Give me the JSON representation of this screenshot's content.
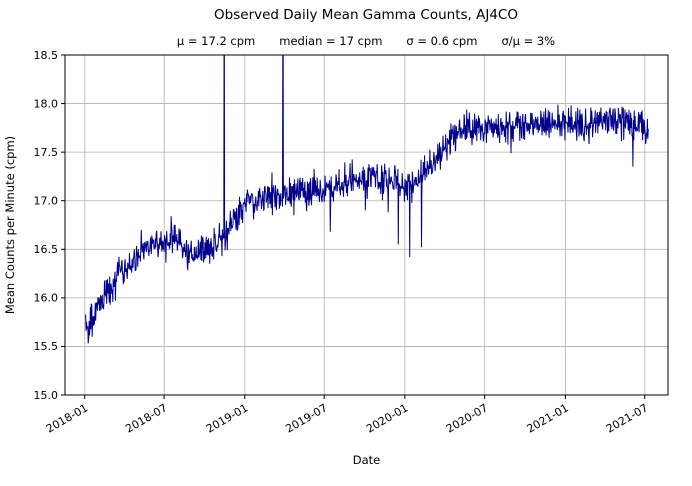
{
  "title": "Observed Daily Mean Gamma Counts, AJ4CO",
  "stats": {
    "mu": "μ = 17.2 cpm",
    "median": "median = 17 cpm",
    "sigma": "σ = 0.6 cpm",
    "ratio": "σ/μ = 3%"
  },
  "chart_data": {
    "type": "line",
    "title": "Observed Daily Mean Gamma Counts, AJ4CO",
    "subtitle": "μ = 17.2 cpm   median = 17 cpm   σ = 0.6 cpm   σ/μ = 3%",
    "xlabel": "Date",
    "ylabel": "Mean Counts per Minute (cpm)",
    "ylim": [
      15.0,
      18.5
    ],
    "yticks": [
      15.0,
      15.5,
      16.0,
      16.5,
      17.0,
      17.5,
      18.0,
      18.5
    ],
    "xticks": [
      "2018-01",
      "2018-07",
      "2019-01",
      "2019-07",
      "2020-01",
      "2020-07",
      "2021-01",
      "2021-07"
    ],
    "xtick_days": [
      0,
      181,
      365,
      546,
      730,
      912,
      1096,
      1277
    ],
    "x_domain_days": [
      -45,
      1330
    ],
    "data_start_day": 2,
    "data_end_day": 1285,
    "grid": true,
    "grid_color": "#b0b0b0",
    "line_color": "#00008b",
    "summary_stats": {
      "mean_cpm": 17.2,
      "median_cpm": 17,
      "sigma_cpm": 0.6,
      "sigma_over_mu_pct": 3
    },
    "series_anchors": [
      [
        0,
        15.78
      ],
      [
        8,
        15.7
      ],
      [
        14,
        15.82
      ],
      [
        20,
        15.72
      ],
      [
        30,
        15.95
      ],
      [
        45,
        16.02
      ],
      [
        60,
        16.1
      ],
      [
        75,
        16.2
      ],
      [
        90,
        16.28
      ],
      [
        105,
        16.35
      ],
      [
        120,
        16.42
      ],
      [
        140,
        16.5
      ],
      [
        160,
        16.55
      ],
      [
        180,
        16.55
      ],
      [
        200,
        16.65
      ],
      [
        215,
        16.6
      ],
      [
        230,
        16.45
      ],
      [
        250,
        16.42
      ],
      [
        270,
        16.45
      ],
      [
        290,
        16.55
      ],
      [
        310,
        16.6
      ],
      [
        330,
        16.72
      ],
      [
        350,
        16.85
      ],
      [
        365,
        16.98
      ],
      [
        385,
        17.0
      ],
      [
        410,
        17.02
      ],
      [
        440,
        17.05
      ],
      [
        470,
        17.08
      ],
      [
        500,
        17.1
      ],
      [
        530,
        17.08
      ],
      [
        560,
        17.12
      ],
      [
        590,
        17.18
      ],
      [
        620,
        17.22
      ],
      [
        650,
        17.25
      ],
      [
        680,
        17.2
      ],
      [
        705,
        17.22
      ],
      [
        730,
        17.12
      ],
      [
        750,
        17.2
      ],
      [
        775,
        17.3
      ],
      [
        800,
        17.42
      ],
      [
        825,
        17.58
      ],
      [
        850,
        17.7
      ],
      [
        870,
        17.75
      ],
      [
        900,
        17.72
      ],
      [
        930,
        17.78
      ],
      [
        960,
        17.74
      ],
      [
        990,
        17.78
      ],
      [
        1020,
        17.8
      ],
      [
        1050,
        17.77
      ],
      [
        1080,
        17.82
      ],
      [
        1110,
        17.79
      ],
      [
        1140,
        17.78
      ],
      [
        1170,
        17.82
      ],
      [
        1200,
        17.8
      ],
      [
        1230,
        17.82
      ],
      [
        1260,
        17.78
      ],
      [
        1285,
        17.7
      ]
    ],
    "spikes": [
      [
        318,
        19.8
      ],
      [
        452,
        19.8
      ],
      [
        560,
        16.68
      ],
      [
        640,
        16.9
      ],
      [
        692,
        16.88
      ],
      [
        715,
        16.55
      ],
      [
        741,
        16.42
      ],
      [
        768,
        16.52
      ],
      [
        1250,
        17.35
      ]
    ],
    "noise_sd": 0.085,
    "noise_seed": 42,
    "legend": "none"
  }
}
